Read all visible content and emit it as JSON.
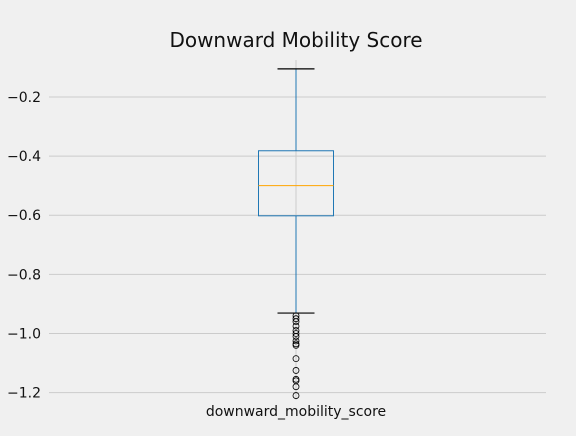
{
  "chart_data": {
    "type": "box",
    "title": "Downward Mobility Score",
    "categories": [
      "downward_mobility_score"
    ],
    "y_ticks": [
      -0.2,
      -0.4,
      -0.6,
      -0.8,
      -1.0,
      -1.2
    ],
    "y_tick_labels": [
      "−0.2",
      "−0.4",
      "−0.6",
      "−0.8",
      "−1.0",
      "−1.2"
    ],
    "ylim": [
      -1.225,
      -0.075
    ],
    "grid": true,
    "box": {
      "whisker_high": -0.105,
      "q3": -0.382,
      "median": -0.5,
      "q1": -0.602,
      "whisker_low": -0.931
    },
    "outliers": [
      -0.94,
      -0.95,
      -0.96,
      -0.975,
      -0.99,
      -1.0,
      -1.01,
      -1.025,
      -1.035,
      -1.04,
      -1.085,
      -1.125,
      -1.155,
      -1.16,
      -1.18,
      -1.21
    ],
    "colors": {
      "box": "#1f77b4",
      "median": "#ffa500",
      "outlier": "#000000",
      "grid": "#cbcbcb",
      "background": "#f0f0f0"
    }
  }
}
